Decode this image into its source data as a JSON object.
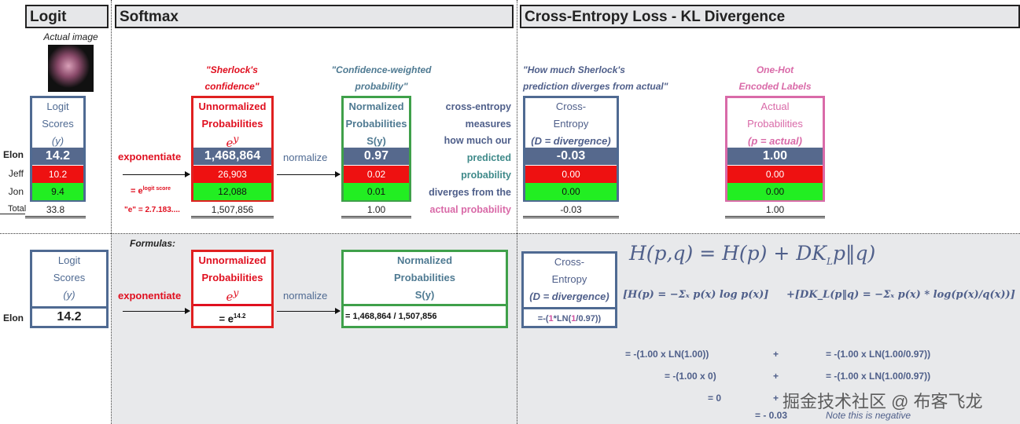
{
  "headers": {
    "logit": "Logit",
    "softmax": "Softmax",
    "ce": "Cross-Entropy Loss - KL Divergence"
  },
  "actual_image": "Actual image",
  "rows": [
    "Elon",
    "Jeff",
    "Jon"
  ],
  "total_label": "Total",
  "logit": {
    "h1": "Logit",
    "h2": "Scores",
    "h3": "(y)",
    "values": [
      "14.2",
      "10.2",
      "9.4"
    ],
    "total": "33.8"
  },
  "exponentiate": "exponentiate",
  "e_logit": "= e",
  "e_logit_sup": "logit score",
  "e_value": "\"e\" = 2.7.183....",
  "sherlock_q1": "\"Sherlock's",
  "sherlock_q2": "confidence\"",
  "unnorm": {
    "h1": "Unnormalized",
    "h2": "Probabilities",
    "h3": "e",
    "h3sup": "y",
    "values": [
      "1,468,864",
      "26,903",
      "12,088"
    ],
    "total": "1,507,856"
  },
  "normalize": "normalize",
  "conf_q1": "\"Confidence-weighted",
  "conf_q2": "probability\"",
  "norm": {
    "h1": "Normalized",
    "h2": "Probabilities",
    "h3": "S(y)",
    "values": [
      "0.97",
      "0.02",
      "0.01"
    ],
    "total": "1.00"
  },
  "explain": [
    "cross-entropy",
    "measures",
    "how much our",
    "predicted",
    "probability",
    "diverges from the",
    "actual probability"
  ],
  "ce_q1": "\"How much Sherlock's",
  "ce_q2": "prediction diverges from actual\"",
  "ce": {
    "h1": "Cross-",
    "h2": "Entropy",
    "h3": "(D = divergence)",
    "values": [
      "-0.03",
      "0.00",
      "0.00"
    ],
    "total": "-0.03"
  },
  "onehot_q1": "One-Hot",
  "onehot_q2": "Encoded Labels",
  "actual": {
    "h1": "Actual",
    "h2": "Probabilities",
    "h3": "(p = actual)",
    "values": [
      "1.00",
      "0.00",
      "0.00"
    ],
    "total": "1.00"
  },
  "formulas_label": "Formulas:",
  "bottom": {
    "logit_value": "14.2",
    "exp_formula": "= e",
    "exp_sup": "14.2",
    "norm_formula": "= 1,468,864 / 1,507,856",
    "ce_formula_a": "=-(",
    "ce_formula_b": "1",
    "ce_formula_c": "*LN(",
    "ce_formula_d": "1",
    "ce_formula_e": "/0.97))"
  },
  "math": {
    "main": "H(p,q) = H(p) + DK",
    "main_sub": "L",
    "main_end": "p‖q)",
    "entropy": "[H(p) = −Σₓ p(x) log p(x)]",
    "kl": "+[DK_L(p‖q) = −Σₓ p(x) * log(p(x)/q(x))]"
  },
  "calc": {
    "l1": "= -(1.00 x LN(1.00))",
    "l2": "= -(1.00 x 0)",
    "l3": "= 0",
    "plus": "+",
    "r1": "= -(1.00 x LN(1.00/0.97))",
    "r2": "= -(1.00 x LN(1.00/0.97))",
    "result": "= - 0.03",
    "note": "Note this is negative"
  },
  "watermark": "掘金技术社区 @ 布客飞龙"
}
